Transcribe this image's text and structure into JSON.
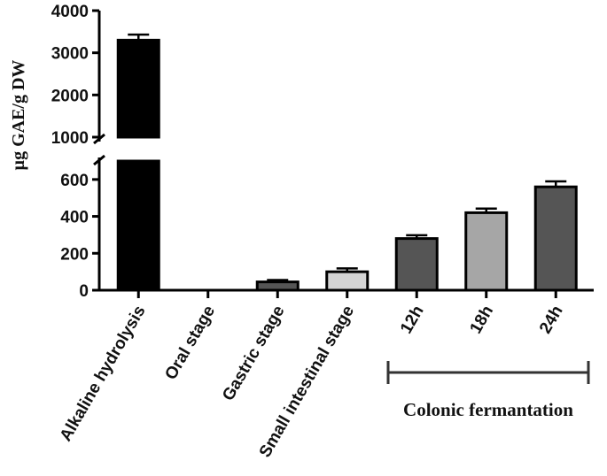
{
  "chart_data": {
    "type": "bar",
    "title": "",
    "xlabel": "",
    "ylabel": "µg GAE/g DW",
    "categories": [
      "Alkaline hydrolysis",
      "Oral stage",
      "Gastric stage",
      "Small intestinal stage",
      "12h",
      "18h",
      "24h"
    ],
    "values": [
      3300,
      0,
      45,
      100,
      280,
      420,
      560
    ],
    "errors": [
      130,
      0,
      10,
      18,
      18,
      22,
      30
    ],
    "bar_colors": [
      "#000000",
      "#000000",
      "#555555",
      "#d4d4d4",
      "#555555",
      "#a6a6a6",
      "#555555"
    ],
    "ylim_lower": [
      0,
      700
    ],
    "ylim_upper": [
      1000,
      4000
    ],
    "axis_break": true,
    "yticks_lower": [
      "0",
      "200",
      "400",
      "600"
    ],
    "yticks_upper": [
      "1000",
      "2000",
      "3000",
      "4000"
    ],
    "group_label": {
      "text": "Colonic fermantation",
      "categories": [
        "12h",
        "18h",
        "24h"
      ]
    },
    "grid": false,
    "legend": "none"
  }
}
